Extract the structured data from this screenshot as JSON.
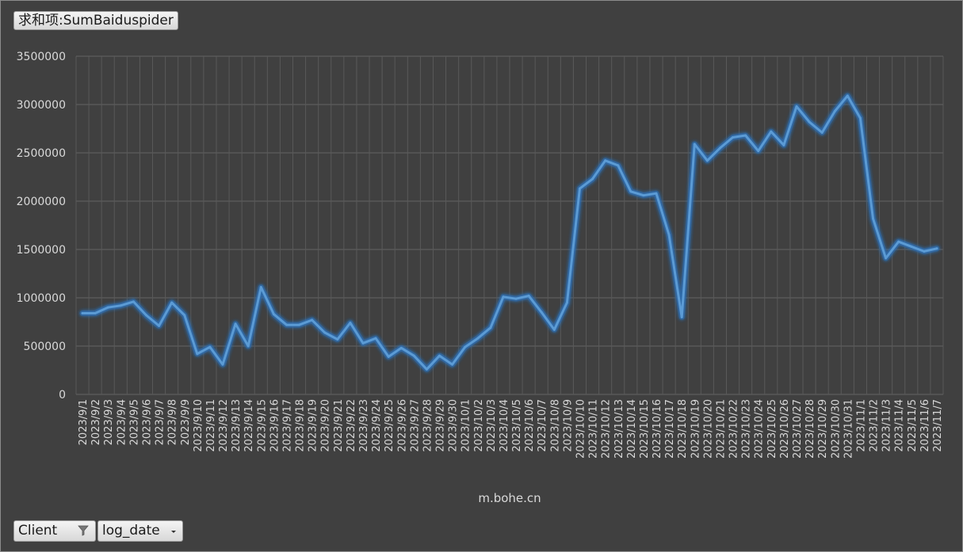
{
  "pivot": {
    "value_field": "求和项:SumBaiduspider",
    "row_field": "Client",
    "axis_field": "log_date"
  },
  "colors": {
    "line": "#5b9bd5",
    "glow": "#2f6fb3",
    "grid": "#595959",
    "text": "#d9d9d9",
    "background": "#404040"
  },
  "chart_data": {
    "type": "line",
    "title": "",
    "xlabel": "m.bohe.cn",
    "ylabel": "",
    "ylim": [
      0,
      3500000
    ],
    "yticks": [
      0,
      500000,
      1000000,
      1500000,
      2000000,
      2500000,
      3000000,
      3500000
    ],
    "grid": true,
    "legend": "none",
    "categories": [
      "2023/9/1",
      "2023/9/2",
      "2023/9/3",
      "2023/9/4",
      "2023/9/5",
      "2023/9/6",
      "2023/9/7",
      "2023/9/8",
      "2023/9/9",
      "2023/9/10",
      "2023/9/11",
      "2023/9/12",
      "2023/9/13",
      "2023/9/14",
      "2023/9/15",
      "2023/9/16",
      "2023/9/17",
      "2023/9/18",
      "2023/9/19",
      "2023/9/20",
      "2023/9/21",
      "2023/9/22",
      "2023/9/23",
      "2023/9/24",
      "2023/9/25",
      "2023/9/26",
      "2023/9/27",
      "2023/9/28",
      "2023/9/29",
      "2023/9/30",
      "2023/10/1",
      "2023/10/2",
      "2023/10/3",
      "2023/10/4",
      "2023/10/5",
      "2023/10/6",
      "2023/10/7",
      "2023/10/8",
      "2023/10/9",
      "2023/10/10",
      "2023/10/11",
      "2023/10/12",
      "2023/10/13",
      "2023/10/14",
      "2023/10/15",
      "2023/10/16",
      "2023/10/17",
      "2023/10/18",
      "2023/10/19",
      "2023/10/20",
      "2023/10/21",
      "2023/10/22",
      "2023/10/23",
      "2023/10/24",
      "2023/10/25",
      "2023/10/26",
      "2023/10/27",
      "2023/10/28",
      "2023/10/29",
      "2023/10/30",
      "2023/10/31",
      "2023/11/1",
      "2023/11/2",
      "2023/11/3",
      "2023/11/4",
      "2023/11/5",
      "2023/11/6",
      "2023/11/7"
    ],
    "series": [
      {
        "values": [
          840000,
          840000,
          900000,
          920000,
          960000,
          820000,
          710000,
          950000,
          820000,
          420000,
          490000,
          310000,
          730000,
          500000,
          1110000,
          830000,
          720000,
          720000,
          770000,
          640000,
          570000,
          740000,
          530000,
          580000,
          390000,
          480000,
          400000,
          260000,
          400000,
          310000,
          490000,
          580000,
          690000,
          1010000,
          990000,
          1020000,
          850000,
          670000,
          950000,
          2130000,
          2230000,
          2420000,
          2370000,
          2100000,
          2060000,
          2080000,
          1650000,
          800000,
          2590000,
          2420000,
          2550000,
          2660000,
          2680000,
          2520000,
          2720000,
          2580000,
          2980000,
          2820000,
          2710000,
          2930000,
          3090000,
          2860000,
          1820000,
          1410000,
          1580000,
          1530000,
          1480000,
          1510000
        ]
      }
    ]
  }
}
